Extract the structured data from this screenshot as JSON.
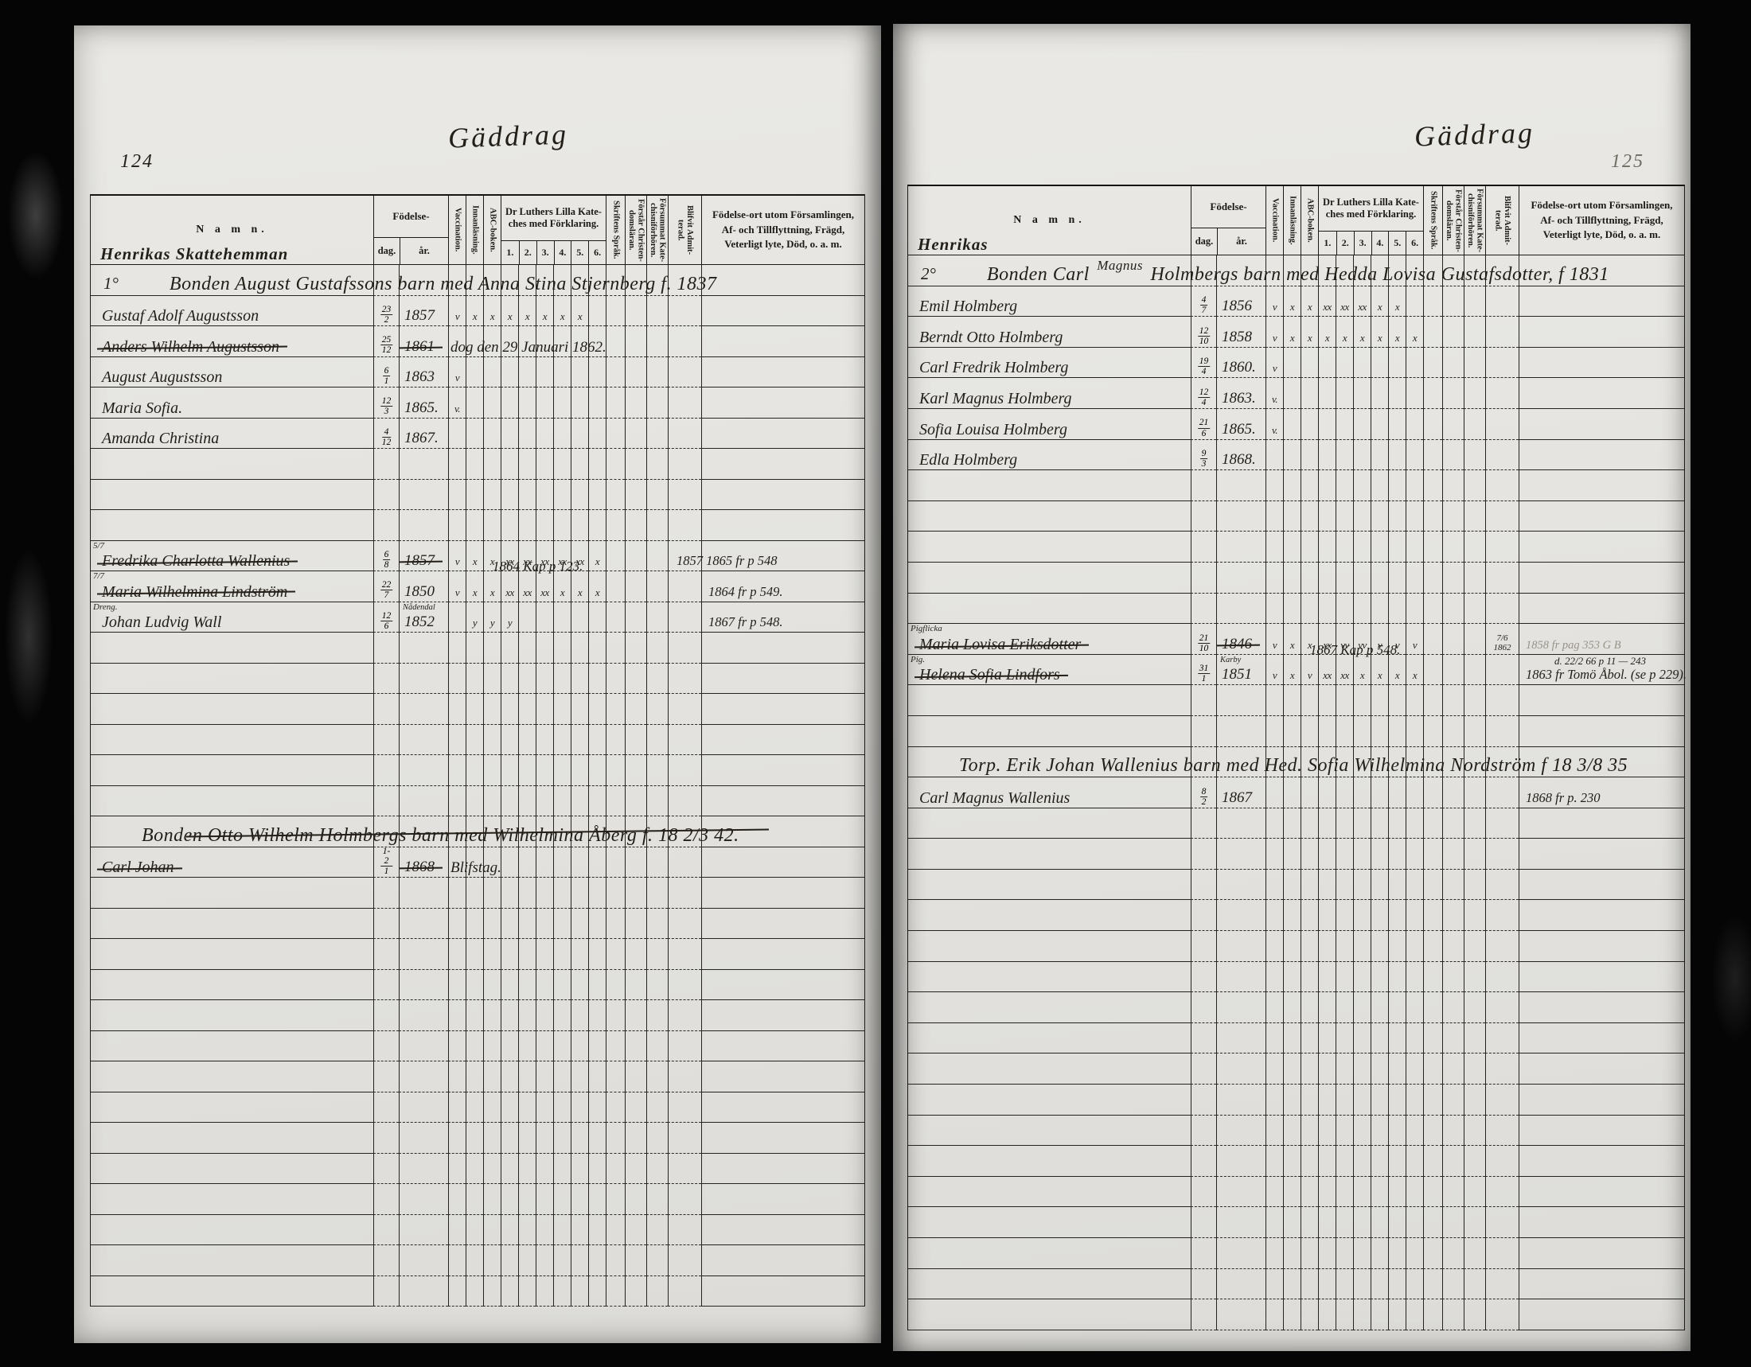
{
  "header": {
    "namn": "N a m n.",
    "fodelse": "Födelse-",
    "dag": "dag.",
    "ar": "år.",
    "vaccination": "Vaccination.",
    "innanlasning": "Innanläsning.",
    "abc": "ABC-boken.",
    "katekes_title": "Dr Luthers Lilla Kate-\nches med Förklaring.",
    "k_nums": [
      "1.",
      "2.",
      "3.",
      "4.",
      "5.",
      "6."
    ],
    "skriftens": "Skriftens Språk.",
    "forstar": "Förstår Christen-\ndomsläran.",
    "forsummat": "Försummat Kate-\nchisniförhören.",
    "blifvit": "Blifvit Admit-\nterad.",
    "fodelseort": "Födelse-ort utom Församlingen,\nAf- och Tillflyttning, Frägd,\nVeterligt lyte, Död, o. a. m."
  },
  "pages": [
    {
      "page_number": "124",
      "title": "Gäddrag",
      "farm_name": "Henrikas Skattehemman",
      "row_count": 34,
      "rows": {
        "0": {
          "type": "family",
          "num": "1°",
          "text": "Bonden August Gustafssons barn med Anna Stina Stjernberg f. 1837"
        },
        "1": {
          "name": "Gustaf Adolf Augustsson",
          "day": "23/2",
          "year": "1857",
          "marks": [
            "v",
            "x",
            "x",
            "x",
            "x",
            "x",
            "x",
            "x",
            ""
          ]
        },
        "2": {
          "name": "Anders Wilhelm Augustsson",
          "strike": true,
          "day": "25/12",
          "year": "1861",
          "year_strike": true,
          "span_note": "dog den 29 Januari 1862."
        },
        "3": {
          "name": "August Augustsson",
          "day": "6/1",
          "year": "1863",
          "marks": [
            "v"
          ]
        },
        "4": {
          "name": "Maria Sofia.",
          "day": "12/3",
          "year": "1865.",
          "marks": [
            "v."
          ]
        },
        "5": {
          "name": "Amanda Christina",
          "day": "4/12",
          "year": "1867."
        },
        "9": {
          "name": "Fredrika Charlotta Wallenius",
          "strike": true,
          "margin": "5/7",
          "day": "6/8",
          "year": "1857",
          "year_strike": true,
          "marks": [
            "v",
            "x",
            "x",
            "xx",
            "xx",
            "xx",
            "xx",
            "xx",
            "x"
          ],
          "right_note": "1857 1865 fr p 548",
          "shift": true
        },
        "10": {
          "name": "Maria Wilhelmina Lindström",
          "strike": true,
          "margin": "7/7",
          "day": "22/7",
          "year": "1850",
          "marks": [
            "v",
            "x",
            "x",
            "xx",
            "xx",
            "xx",
            "x",
            "x",
            "x"
          ],
          "over_note": "1864 Kap p 123.",
          "right_note": "1864 fr p 549."
        },
        "11": {
          "name": "Johan Ludvig Wall",
          "margin": "Dreng.",
          "day": "12/6",
          "year_extra": "Nådendal",
          "year": "1852",
          "marks": [
            "",
            "y",
            "y",
            "y"
          ],
          "right_note": "1867 fr p 548."
        },
        "18": {
          "type": "family",
          "strike": true,
          "text": "Bonden Otto Wilhelm Holmbergs barn med Wilhelmina Åberg f. 18 2/3 42."
        },
        "19": {
          "name": "Carl Johan",
          "strike": true,
          "day": "1-2/1",
          "year": "1868",
          "year_strike": true,
          "span_note": "Blifstag."
        }
      }
    },
    {
      "page_number": "125",
      "title": "Gäddrag",
      "farm_name": "Henrikas",
      "row_count": 35,
      "rows": {
        "0": {
          "type": "family",
          "num": "2°",
          "text_pre": "Bonden Carl",
          "insert": "Magnus",
          "text_post": "Holmbergs barn med Hedda Lovisa Gustafsdotter, f 1831"
        },
        "1": {
          "name": "Emil Holmberg",
          "day": "4/7",
          "year": "1856",
          "marks": [
            "v",
            "x",
            "x",
            "xx",
            "xx",
            "xx",
            "x",
            "x",
            ""
          ]
        },
        "2": {
          "name": "Berndt Otto Holmberg",
          "day": "12/10",
          "year": "1858",
          "marks": [
            "v",
            "x",
            "x",
            "x",
            "x",
            "x",
            "x",
            "x",
            "x"
          ]
        },
        "3": {
          "name": "Carl Fredrik Holmberg",
          "day": "19/4",
          "year": "1860.",
          "marks": [
            "v"
          ]
        },
        "4": {
          "name": "Karl Magnus Holmberg",
          "day": "12/4",
          "year": "1863.",
          "marks": [
            "v."
          ]
        },
        "5": {
          "name": "Sofia Louisa Holmberg",
          "day": "21/6",
          "year": "1865.",
          "marks": [
            "v."
          ]
        },
        "6": {
          "name": "Edla Holmberg",
          "day": "9/3",
          "year": "1868."
        },
        "12": {
          "name": "Maria Lovisa Eriksdotter",
          "strike": true,
          "margin": "Pigflicka",
          "day": "21/10",
          "year": "1846",
          "year_strike": true,
          "marks": [
            "v",
            "x",
            "x",
            "xx",
            "vv",
            "vv",
            "v",
            "v",
            "v"
          ],
          "admit": "7/6\n1862",
          "right_note": "1858 fr pag 353 G B",
          "faint": true
        },
        "13": {
          "name": "Helena Sofia Lindfors",
          "strike": true,
          "margin": "Pig.",
          "day": "31/1",
          "year_extra": "Karby",
          "year": "1851",
          "marks": [
            "v",
            "x",
            "v",
            "xx",
            "xx",
            "x",
            "x",
            "x",
            "x"
          ],
          "over_note": "1867 Kap p 548.",
          "right_lines": [
            "d. 22/2 66 p 11 — 243",
            "1863 fr Tomö Åbol. (se p 229)."
          ]
        },
        "16": {
          "type": "family",
          "text": "Torp. Erik Johan Wallenius barn med Hed. Sofia Wilhelmina Nordström f 18 3/8 35"
        },
        "17": {
          "name": "Carl Magnus Wallenius",
          "day": "8/2",
          "year": "1867",
          "right_note": "1868 fr p. 230"
        }
      }
    }
  ]
}
